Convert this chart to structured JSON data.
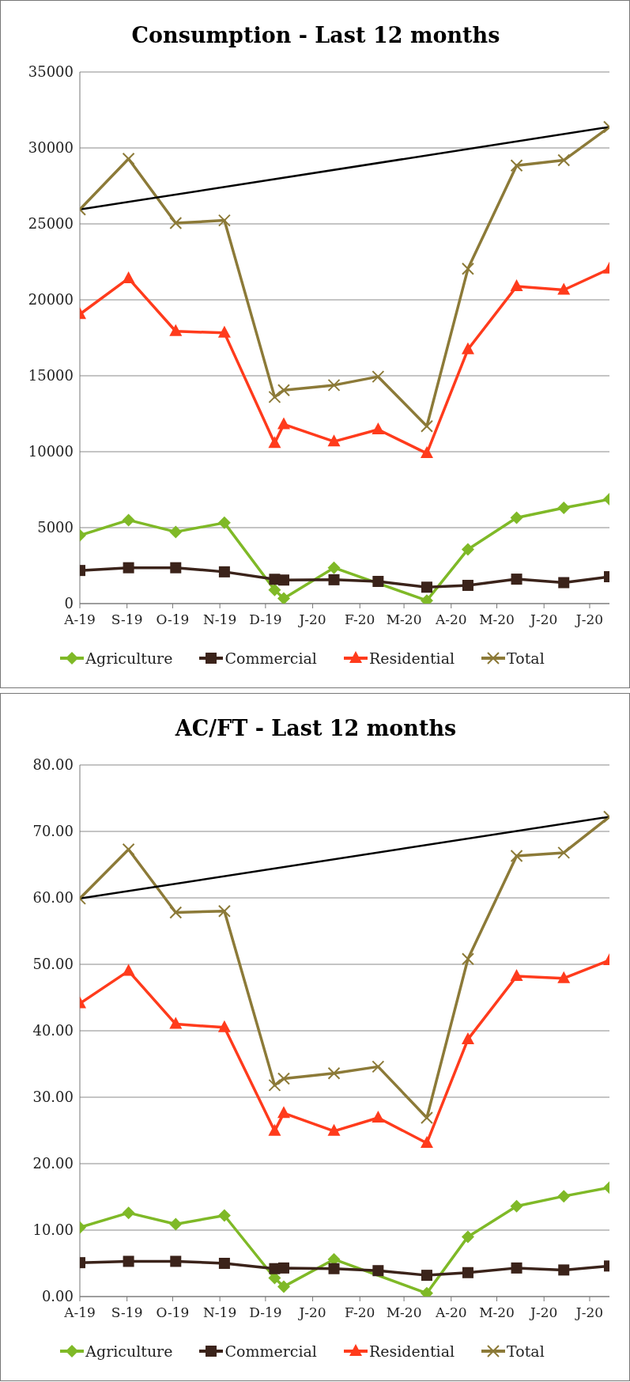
{
  "chart_data": [
    {
      "type": "line",
      "title": "Consumption - Last 12 months",
      "grid": "y",
      "legend": "bottom",
      "line_style": "solid",
      "x": [
        "2019-08-01",
        "2019-09-02",
        "2019-10-03",
        "2019-11-04",
        "2019-12-07",
        "2019-12-13",
        "2020-01-15",
        "2020-02-13",
        "2020-03-16",
        "2020-04-12",
        "2020-05-14",
        "2020-06-14",
        "2020-07-14"
      ],
      "xlim": [
        "2019-08-01",
        "2020-07-14"
      ],
      "xticks": [
        {
          "value": "2019-08-01",
          "label": "A-19"
        },
        {
          "value": "2019-09-01",
          "label": "S-19"
        },
        {
          "value": "2019-10-01",
          "label": "O-19"
        },
        {
          "value": "2019-11-01",
          "label": "N-19"
        },
        {
          "value": "2019-12-01",
          "label": "D-19"
        },
        {
          "value": "2020-01-01",
          "label": "J-20"
        },
        {
          "value": "2020-02-01",
          "label": "F-20"
        },
        {
          "value": "2020-03-01",
          "label": "M-20"
        },
        {
          "value": "2020-04-01",
          "label": "A-20"
        },
        {
          "value": "2020-05-01",
          "label": "M-20"
        },
        {
          "value": "2020-06-01",
          "label": "J-20"
        },
        {
          "value": "2020-07-01",
          "label": "J-20"
        }
      ],
      "ylim": [
        0,
        35000
      ],
      "yticks": [
        0,
        5000,
        10000,
        15000,
        20000,
        25000,
        30000,
        35000
      ],
      "series": [
        {
          "name": "Agriculture",
          "color": "#7fb927",
          "marker": "diamond",
          "values": [
            4490,
            5500,
            4720,
            5320,
            900,
            340,
            2360,
            null,
            200,
            3570,
            5650,
            6300,
            6870
          ]
        },
        {
          "name": "Commercial",
          "color": "#3b231a",
          "marker": "square",
          "values": [
            2180,
            2360,
            2360,
            2090,
            1600,
            1550,
            1570,
            1460,
            1080,
            1200,
            1610,
            1380,
            1770
          ]
        },
        {
          "name": "Residential",
          "color": "#ff3b1c",
          "marker": "triangle",
          "values": [
            19050,
            21410,
            17930,
            17820,
            10560,
            11800,
            10670,
            11460,
            9890,
            16730,
            20880,
            20650,
            22040
          ]
        },
        {
          "name": "Total",
          "color": "#8c7a38",
          "marker": "cross",
          "values": [
            25950,
            29280,
            25050,
            25230,
            13600,
            14050,
            14380,
            14940,
            11680,
            22040,
            28840,
            29190,
            31380
          ]
        },
        {
          "color": "#000000",
          "marker": "none",
          "x": [
            "2019-08-01",
            "2020-07-14"
          ],
          "values": [
            25950,
            31380
          ]
        }
      ]
    },
    {
      "type": "line",
      "title": "AC/FT - Last 12 months",
      "grid": "y",
      "legend": "bottom",
      "line_style": "solid",
      "x": [
        "2019-08-01",
        "2019-09-02",
        "2019-10-03",
        "2019-11-04",
        "2019-12-07",
        "2019-12-13",
        "2020-01-15",
        "2020-02-13",
        "2020-03-16",
        "2020-04-12",
        "2020-05-14",
        "2020-06-14",
        "2020-07-14"
      ],
      "xlim": [
        "2019-08-01",
        "2020-07-14"
      ],
      "xticks": [
        {
          "value": "2019-08-01",
          "label": "A-19"
        },
        {
          "value": "2019-09-01",
          "label": "S-19"
        },
        {
          "value": "2019-10-01",
          "label": "O-19"
        },
        {
          "value": "2019-11-01",
          "label": "N-19"
        },
        {
          "value": "2019-12-01",
          "label": "D-19"
        },
        {
          "value": "2020-01-01",
          "label": "J-20"
        },
        {
          "value": "2020-02-01",
          "label": "F-20"
        },
        {
          "value": "2020-03-01",
          "label": "M-20"
        },
        {
          "value": "2020-04-01",
          "label": "A-20"
        },
        {
          "value": "2020-05-01",
          "label": "M-20"
        },
        {
          "value": "2020-06-01",
          "label": "J-20"
        },
        {
          "value": "2020-07-01",
          "label": "J-20"
        }
      ],
      "ylim": [
        0,
        80
      ],
      "yticks": [
        {
          "value": 0,
          "label": "0.00"
        },
        {
          "value": 10,
          "label": "10.00"
        },
        {
          "value": 20,
          "label": "20.00"
        },
        {
          "value": 30,
          "label": "30.00"
        },
        {
          "value": 40,
          "label": "40.00"
        },
        {
          "value": 50,
          "label": "50.00"
        },
        {
          "value": 60,
          "label": "60.00"
        },
        {
          "value": 70,
          "label": "70.00"
        },
        {
          "value": 80,
          "label": "80.00"
        }
      ],
      "series": [
        {
          "name": "Agriculture",
          "color": "#7fb927",
          "marker": "diamond",
          "values": [
            10.4,
            12.6,
            10.9,
            12.2,
            2.8,
            1.5,
            5.6,
            null,
            0.5,
            9.0,
            13.6,
            15.1,
            16.4
          ]
        },
        {
          "name": "Commercial",
          "color": "#3b231a",
          "marker": "square",
          "values": [
            5.1,
            5.3,
            5.3,
            5.0,
            4.2,
            4.3,
            4.2,
            3.9,
            3.2,
            3.6,
            4.3,
            4.0,
            4.6
          ]
        },
        {
          "name": "Residential",
          "color": "#ff3b1c",
          "marker": "triangle",
          "values": [
            44.1,
            49.0,
            41.0,
            40.5,
            24.9,
            27.6,
            24.9,
            26.9,
            23.1,
            38.7,
            48.2,
            47.9,
            50.6
          ]
        },
        {
          "name": "Total",
          "color": "#8c7a38",
          "marker": "cross",
          "values": [
            59.9,
            67.3,
            57.8,
            58.0,
            31.8,
            32.8,
            33.6,
            34.6,
            26.9,
            50.8,
            66.3,
            66.8,
            72.2
          ]
        },
        {
          "color": "#000000",
          "marker": "none",
          "x": [
            "2019-08-01",
            "2020-07-14"
          ],
          "values": [
            59.9,
            72.2
          ]
        }
      ]
    }
  ]
}
